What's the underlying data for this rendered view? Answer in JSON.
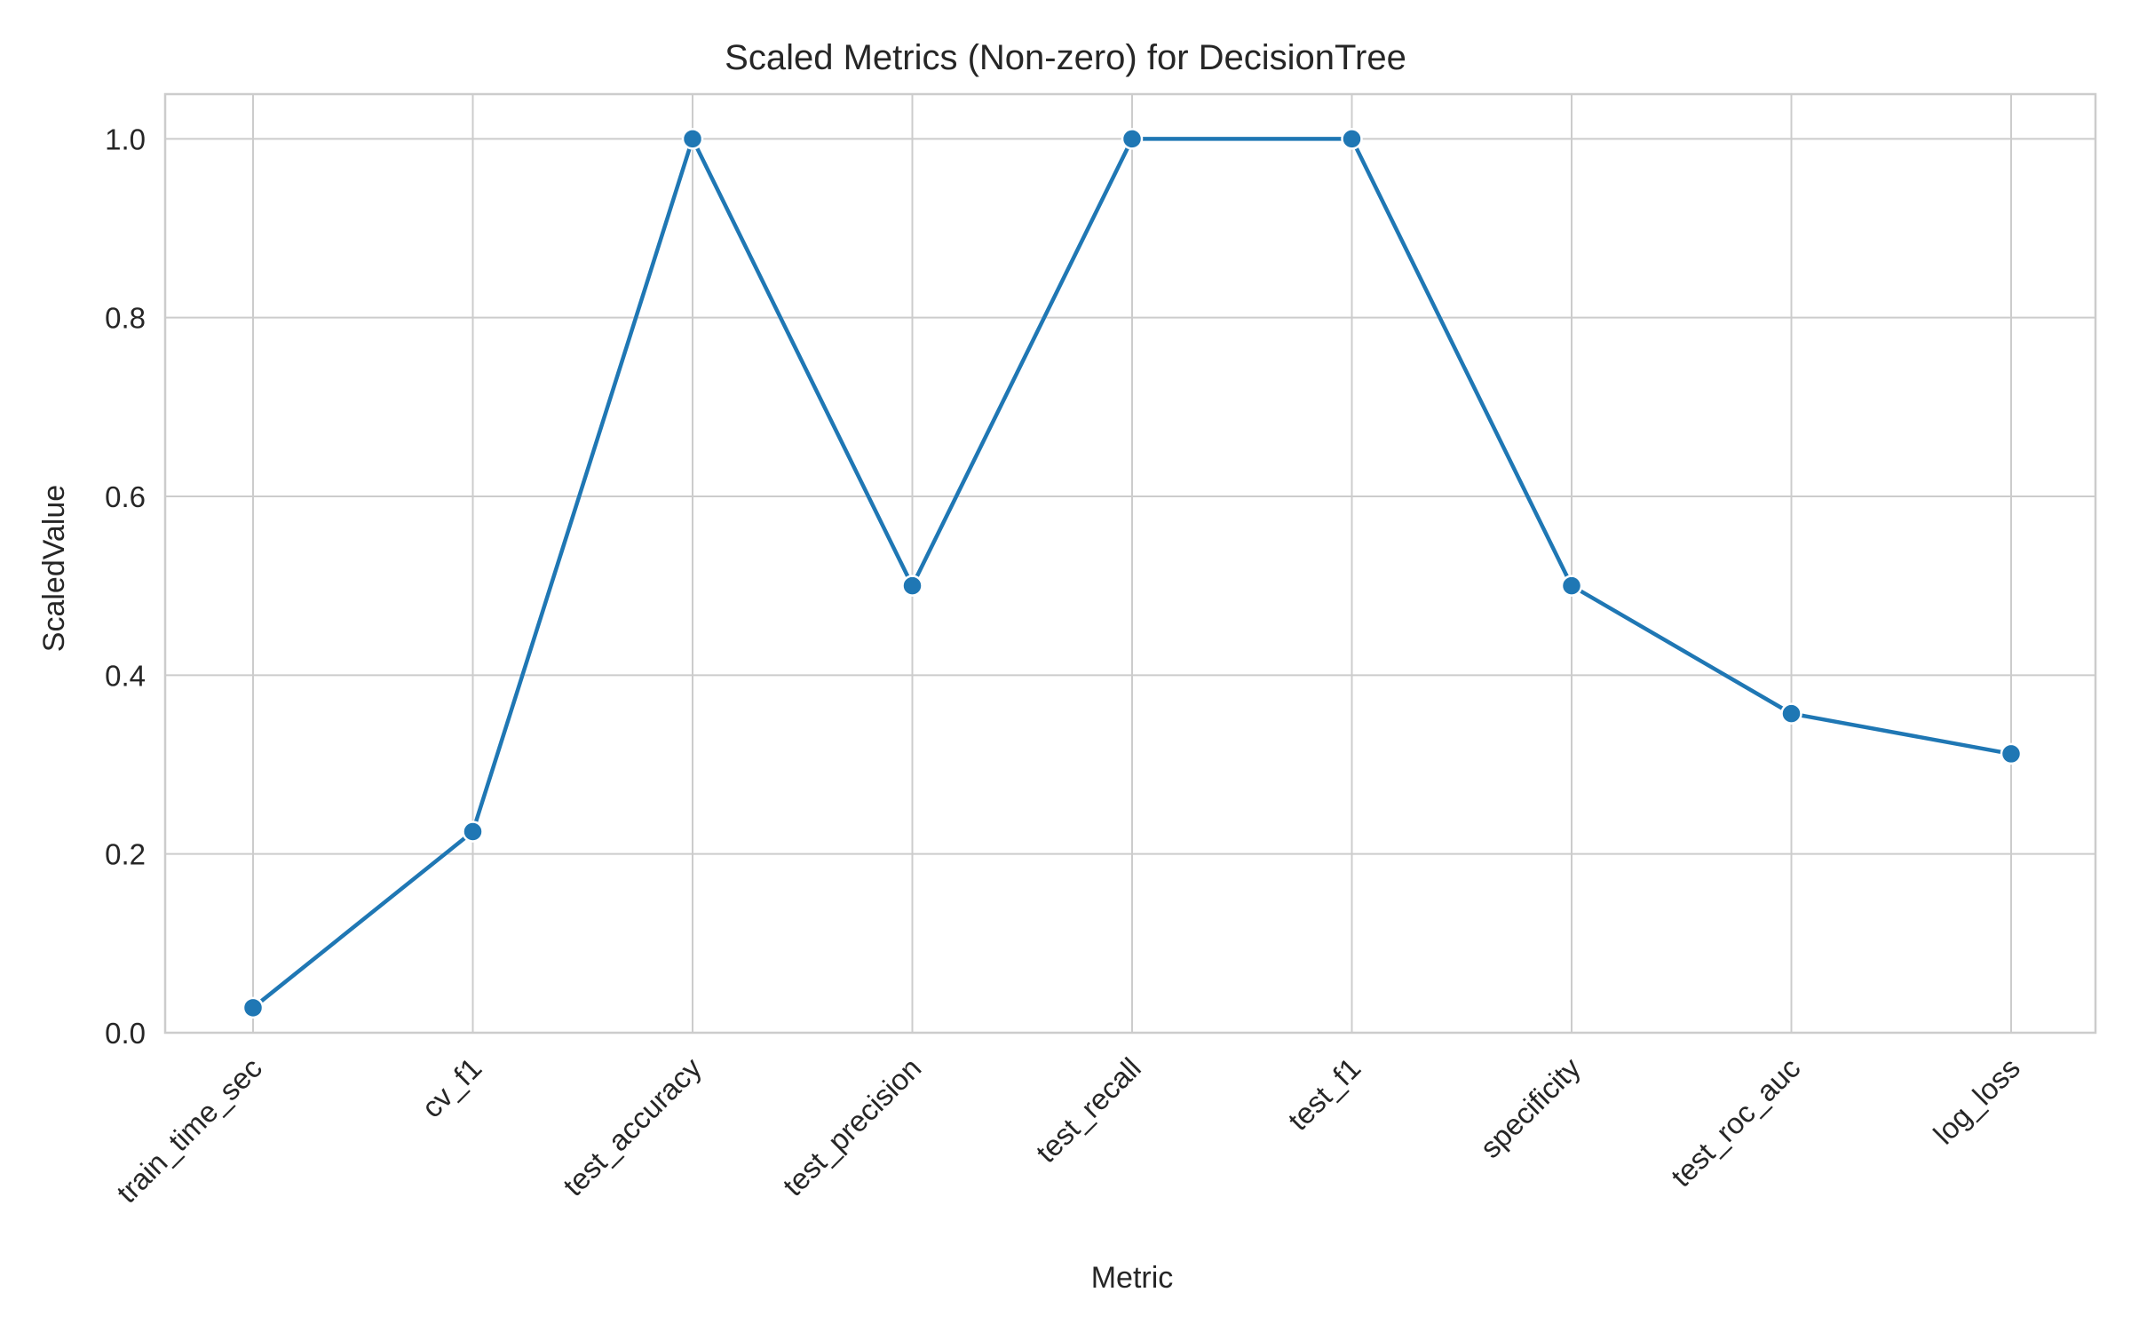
{
  "chart_data": {
    "type": "line",
    "title": "Scaled Metrics (Non-zero) for DecisionTree",
    "xlabel": "Metric",
    "ylabel": "ScaledValue",
    "categories": [
      "train_time_sec",
      "cv_f1",
      "test_accuracy",
      "test_precision",
      "test_recall",
      "test_f1",
      "specificity",
      "test_roc_auc",
      "log_loss"
    ],
    "series": [
      {
        "values": [
          0.028,
          0.225,
          1.0,
          0.5,
          1.0,
          1.0,
          0.5,
          0.357,
          0.312
        ],
        "color": "#1f77b4"
      }
    ],
    "ylim": [
      0.0,
      1.05
    ],
    "yticks": [
      0.0,
      0.2,
      0.4,
      0.6,
      0.8,
      1.0
    ],
    "ytick_labels": [
      "0.0",
      "0.2",
      "0.4",
      "0.6",
      "0.8",
      "1.0"
    ],
    "grid": true,
    "xtick_rotation": "45deg",
    "marker": "circle"
  }
}
